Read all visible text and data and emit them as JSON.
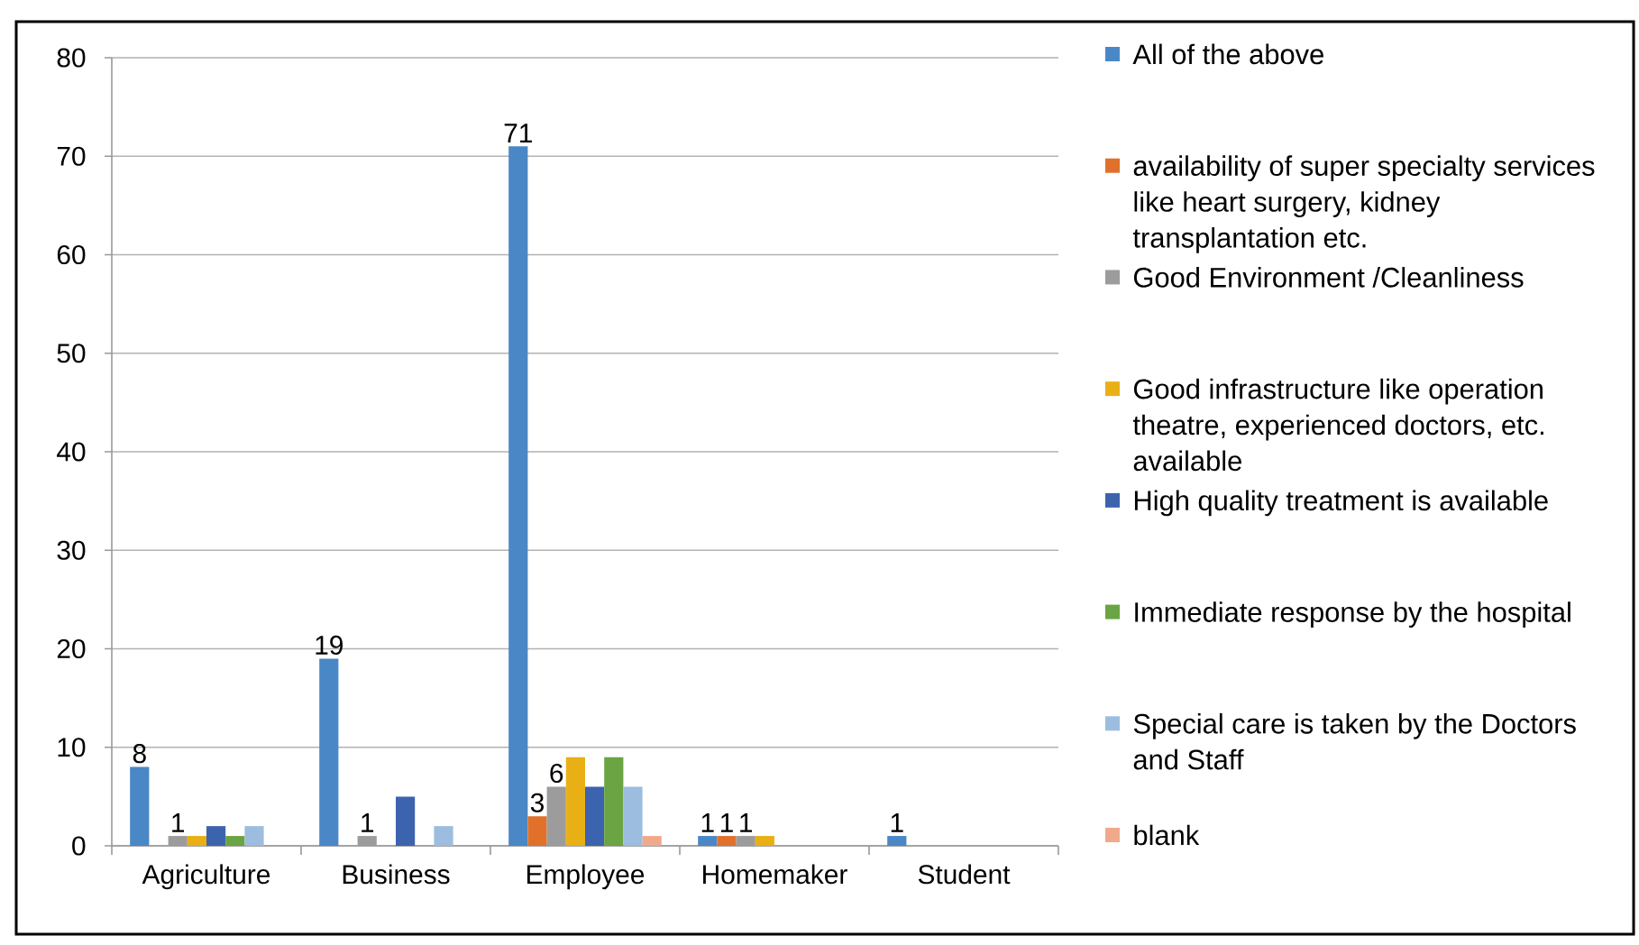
{
  "chart_data": {
    "type": "bar",
    "categories": [
      "Agriculture",
      "Business",
      "Employee",
      "Homemaker",
      "Student"
    ],
    "series": [
      {
        "name": "All of the above",
        "color": "#4a87c6",
        "values": [
          8,
          19,
          71,
          1,
          1
        ],
        "value_labels": [
          "8",
          "19",
          "71",
          "1",
          "1"
        ]
      },
      {
        "name": "availability of super specialty services like heart surgery, kidney transplantation etc.",
        "color": "#e0712b",
        "values": [
          null,
          null,
          3,
          1,
          null
        ],
        "value_labels": [
          null,
          null,
          "3",
          "1",
          null
        ]
      },
      {
        "name": "Good Environment /Cleanliness",
        "color": "#9c9c9c",
        "values": [
          1,
          1,
          6,
          1,
          null
        ],
        "value_labels": [
          "1",
          "1",
          "6",
          "1",
          null
        ]
      },
      {
        "name": "Good infrastructure like operation theatre, experienced doctors, etc. available",
        "color": "#e9b016",
        "values": [
          1,
          null,
          9,
          1,
          null
        ]
      },
      {
        "name": "High quality treatment is available",
        "color": "#3c63ad",
        "values": [
          2,
          5,
          6,
          null,
          null
        ]
      },
      {
        "name": "Immediate response by the hospital",
        "color": "#6aa443",
        "values": [
          1,
          null,
          9,
          null,
          null
        ]
      },
      {
        "name": "Special care is taken by the Doctors and Staff",
        "color": "#9cbde0",
        "values": [
          2,
          2,
          6,
          null,
          null
        ]
      },
      {
        "name": "blank",
        "color": "#f1a98b",
        "values": [
          null,
          null,
          1,
          null,
          null
        ]
      }
    ],
    "ylim": [
      0,
      80
    ],
    "yticks": [
      0,
      10,
      20,
      30,
      40,
      50,
      60,
      70,
      80
    ],
    "grid": "y",
    "legend": "right"
  }
}
